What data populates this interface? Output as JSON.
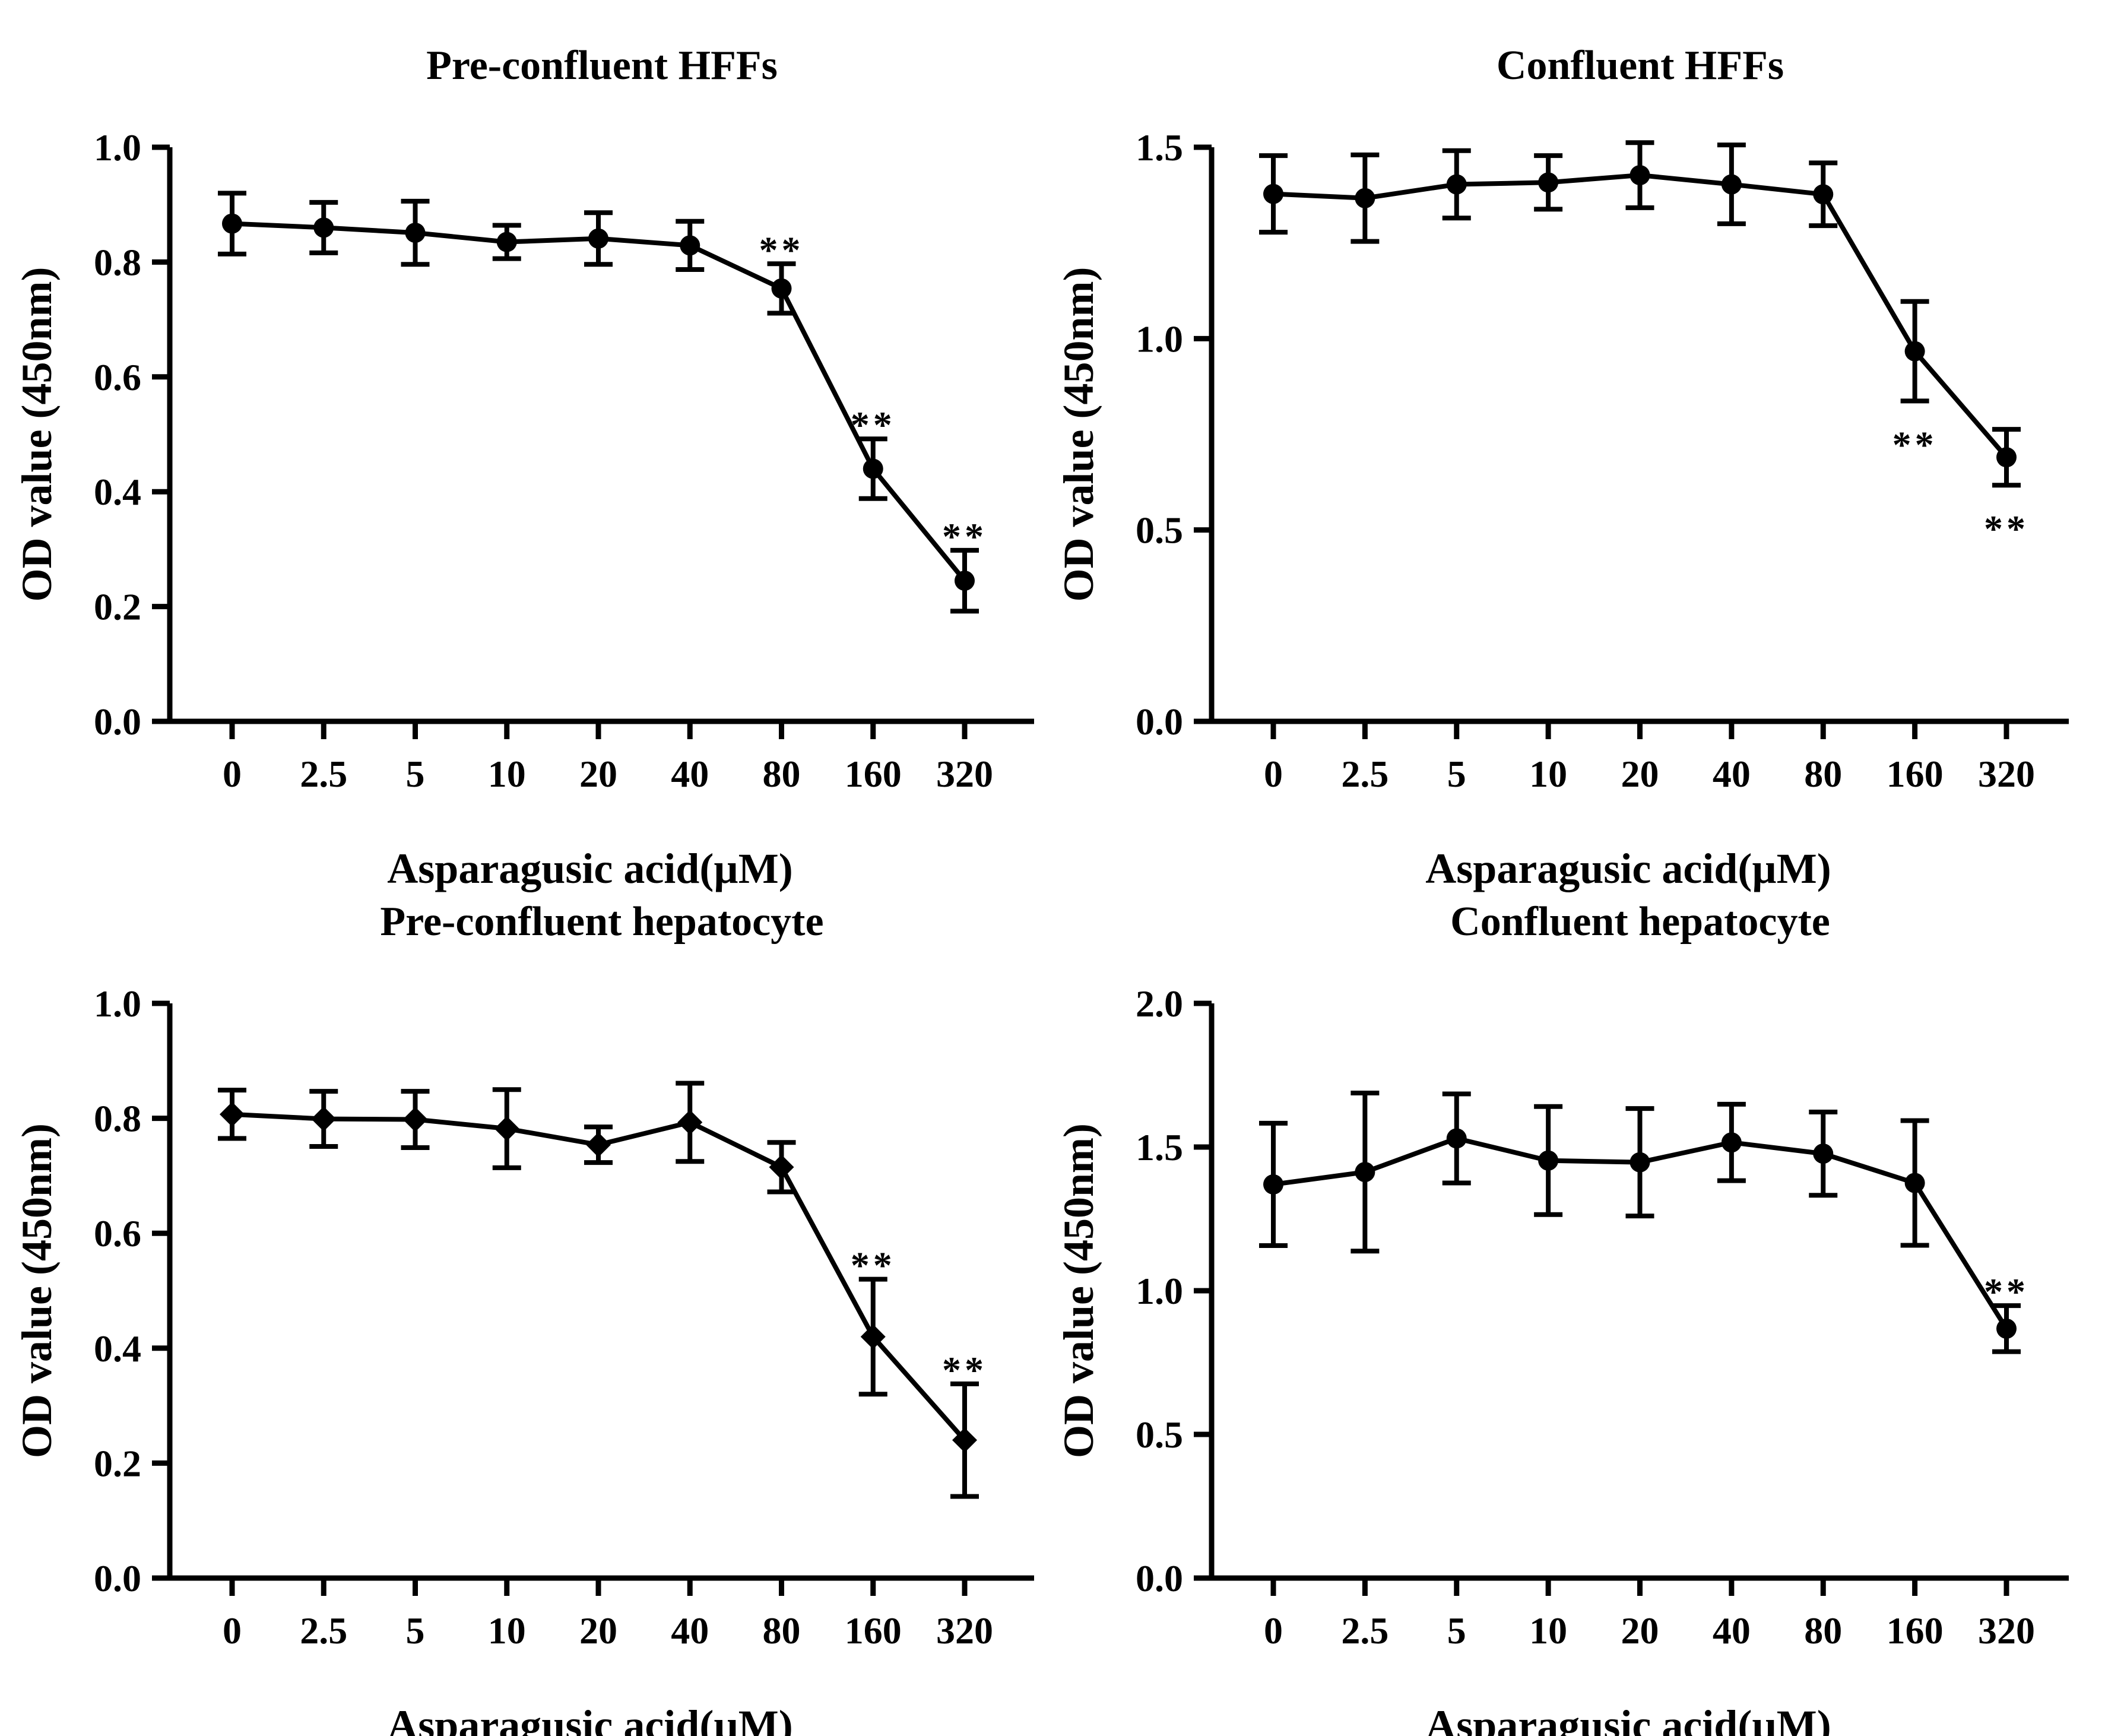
{
  "chart_data": [
    {
      "type": "line",
      "title": "Pre-confluent HFFs",
      "xlabel": "Asparagusic acid(µM)",
      "ylabel": "OD value (450nm)",
      "categories": [
        "0",
        "2.5",
        "5",
        "10",
        "20",
        "40",
        "80",
        "160",
        "320"
      ],
      "ylim": [
        0,
        1.0
      ],
      "yticks": [
        "0.0",
        "0.2",
        "0.4",
        "0.6",
        "0.8",
        "1.0"
      ],
      "marker": "circle",
      "series": [
        {
          "name": "Pre-confluent HFFs",
          "values": [
            0.867,
            0.86,
            0.851,
            0.835,
            0.841,
            0.829,
            0.754,
            0.44,
            0.245
          ],
          "errors": [
            0.053,
            0.044,
            0.055,
            0.029,
            0.045,
            0.042,
            0.043,
            0.052,
            0.053
          ]
        }
      ],
      "annotations": [
        {
          "index": 6,
          "text": "**",
          "placement": "above"
        },
        {
          "index": 7,
          "text": "**",
          "placement": "above"
        },
        {
          "index": 8,
          "text": "**",
          "placement": "above"
        }
      ]
    },
    {
      "type": "line",
      "title": "Confluent HFFs",
      "xlabel": "Asparagusic acid(µM)",
      "ylabel": "OD value (450nm)",
      "categories": [
        "0",
        "2.5",
        "5",
        "10",
        "20",
        "40",
        "80",
        "160",
        "320"
      ],
      "ylim": [
        0,
        1.5
      ],
      "yticks": [
        "0.0",
        "0.5",
        "1.0",
        "1.5"
      ],
      "marker": "circle",
      "series": [
        {
          "name": "Confluent HFFs",
          "values": [
            1.378,
            1.367,
            1.403,
            1.408,
            1.427,
            1.403,
            1.377,
            0.967,
            0.69
          ],
          "errors": [
            0.1,
            0.113,
            0.088,
            0.07,
            0.085,
            0.103,
            0.082,
            0.13,
            0.073
          ]
        }
      ],
      "annotations": [
        {
          "index": 7,
          "text": "**",
          "placement": "below"
        },
        {
          "index": 8,
          "text": "**",
          "placement": "below"
        }
      ]
    },
    {
      "type": "line",
      "title": "Pre-confluent hepatocyte",
      "xlabel": "Asparagusic acid(µM)",
      "ylabel": "OD value (450nm)",
      "categories": [
        "0",
        "2.5",
        "5",
        "10",
        "20",
        "40",
        "80",
        "160",
        "320"
      ],
      "ylim": [
        0,
        1.0
      ],
      "yticks": [
        "0.0",
        "0.2",
        "0.4",
        "0.6",
        "0.8",
        "1.0"
      ],
      "marker": "diamond",
      "series": [
        {
          "name": "Pre-confluent hepatocyte",
          "values": [
            0.807,
            0.799,
            0.798,
            0.782,
            0.754,
            0.793,
            0.715,
            0.42,
            0.24
          ],
          "errors": [
            0.042,
            0.048,
            0.049,
            0.068,
            0.031,
            0.068,
            0.043,
            0.1,
            0.098
          ]
        }
      ],
      "annotations": [
        {
          "index": 7,
          "text": "**",
          "placement": "above"
        },
        {
          "index": 8,
          "text": "**",
          "placement": "above"
        }
      ]
    },
    {
      "type": "line",
      "title": "Confluent hepatocyte",
      "xlabel": "Asparagusic acid(µM)",
      "ylabel": "OD value (450nm)",
      "categories": [
        "0",
        "2.5",
        "5",
        "10",
        "20",
        "40",
        "80",
        "160",
        "320"
      ],
      "ylim": [
        0,
        2.0
      ],
      "yticks": [
        "0.0",
        "0.5",
        "1.0",
        "1.5",
        "2.0"
      ],
      "marker": "circle",
      "series": [
        {
          "name": "Confluent hepatocyte",
          "values": [
            1.37,
            1.413,
            1.53,
            1.453,
            1.447,
            1.516,
            1.477,
            1.375,
            0.868
          ],
          "errors": [
            0.213,
            0.275,
            0.155,
            0.188,
            0.187,
            0.133,
            0.145,
            0.217,
            0.08
          ]
        }
      ],
      "annotations": [
        {
          "index": 8,
          "text": "**",
          "placement": "above"
        }
      ]
    }
  ]
}
